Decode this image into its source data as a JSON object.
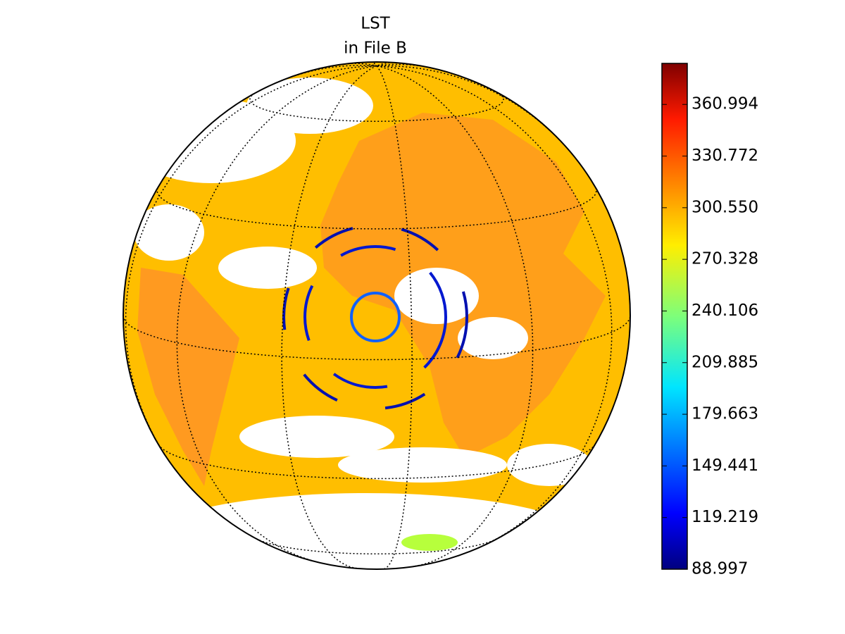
{
  "map": {
    "title_lines": [
      "LST",
      "in File B"
    ],
    "colorbar": {
      "lim": [
        88.997,
        385
      ],
      "ticks": [
        88.997,
        119.219,
        149.441,
        179.663,
        209.885,
        240.106,
        270.328,
        {
          "value": 300.55,
          "label": "300.550"
        },
        330.772,
        360.994
      ]
    }
  }
}
